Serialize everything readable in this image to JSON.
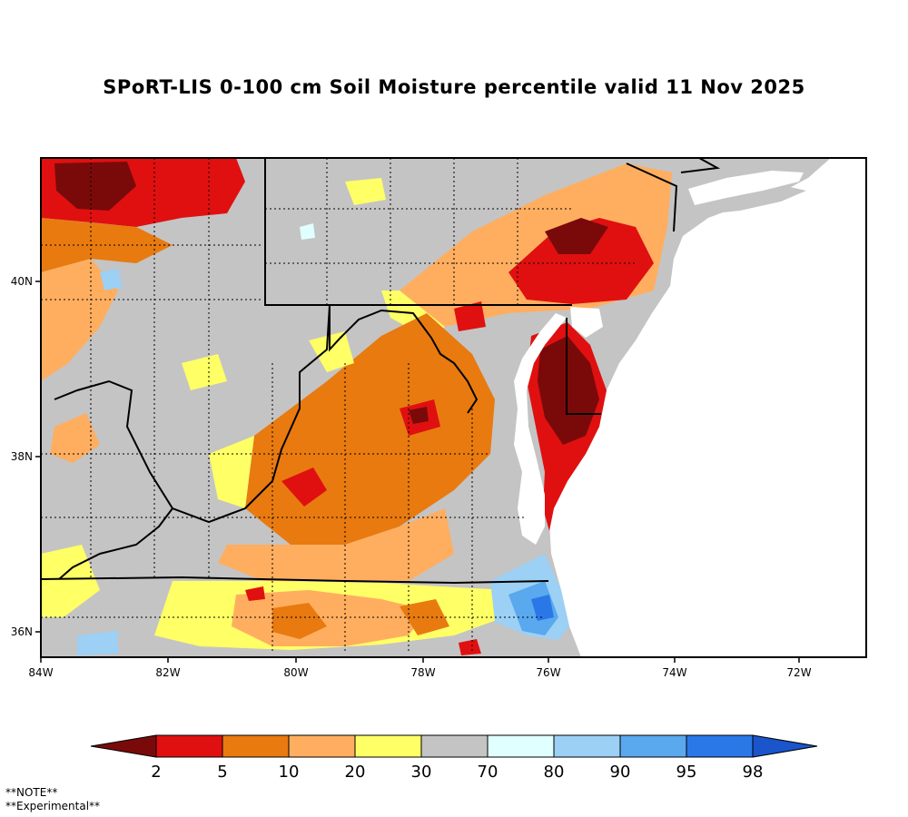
{
  "title": "SPoRT-LIS 0-100 cm Soil Moisture percentile valid 11 Nov 2025",
  "axes": {
    "lon_labels": [
      "84W",
      "82W",
      "80W",
      "78W",
      "76W",
      "74W",
      "72W"
    ],
    "lat_labels": [
      "40N",
      "38N",
      "36N"
    ]
  },
  "legend": {
    "colors": [
      "#7a0a0a",
      "#e01010",
      "#e87a10",
      "#ffae60",
      "#ffff66",
      "#c4c4c4",
      "#e0ffff",
      "#9cd0f5",
      "#5aa8ee",
      "#2a78e8",
      "#1a55cc"
    ],
    "labels": [
      "2",
      "5",
      "10",
      "20",
      "30",
      "70",
      "80",
      "90",
      "95",
      "98"
    ]
  },
  "note": {
    "line1": "**NOTE**",
    "line2": "**Experimental**"
  }
}
